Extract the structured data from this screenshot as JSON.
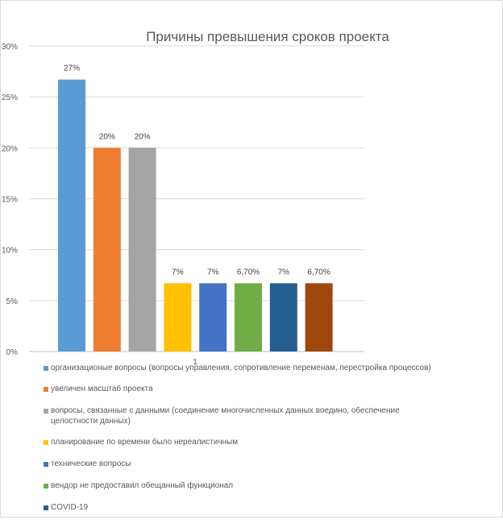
{
  "chart_data": {
    "type": "bar",
    "title": "Причины превышения сроков проекта",
    "xlabel": "",
    "ylabel": "",
    "categories": [
      "1"
    ],
    "ylim": [
      0,
      30
    ],
    "yticks": [
      "0%",
      "5%",
      "10%",
      "15%",
      "20%",
      "25%",
      "30%"
    ],
    "grid": true,
    "legend_position": "bottom-left",
    "series": [
      {
        "name": "организационые вопросы (вопросы управления, сопротивление переменам, перестройка процессов)",
        "value": 26.7,
        "label": "27%",
        "color": "#5b9bd5"
      },
      {
        "name": "увеличен масштаб проекта",
        "value": 20,
        "label": "20%",
        "color": "#ed7d31"
      },
      {
        "name": "вопросы, связанные с данными (соединение многочисленных данных воедино, обеспечение целостности данных)",
        "value": 20,
        "label": "20%",
        "color": "#a5a5a5"
      },
      {
        "name": "планирование по времени было нереалистичным",
        "value": 6.7,
        "label": "7%",
        "color": "#ffc000"
      },
      {
        "name": "технические вопросы",
        "value": 6.7,
        "label": "7%",
        "color": "#4472c4"
      },
      {
        "name": "вендор не предоставил обещанный функционал",
        "value": 6.7,
        "label": "6,70%",
        "color": "#70ad47"
      },
      {
        "name": "COVID-19",
        "value": 6.7,
        "label": "7%",
        "color": "#255e91"
      },
      {
        "name": "",
        "value": 6.7,
        "label": "6,70%",
        "color": "#9e480e"
      }
    ]
  }
}
